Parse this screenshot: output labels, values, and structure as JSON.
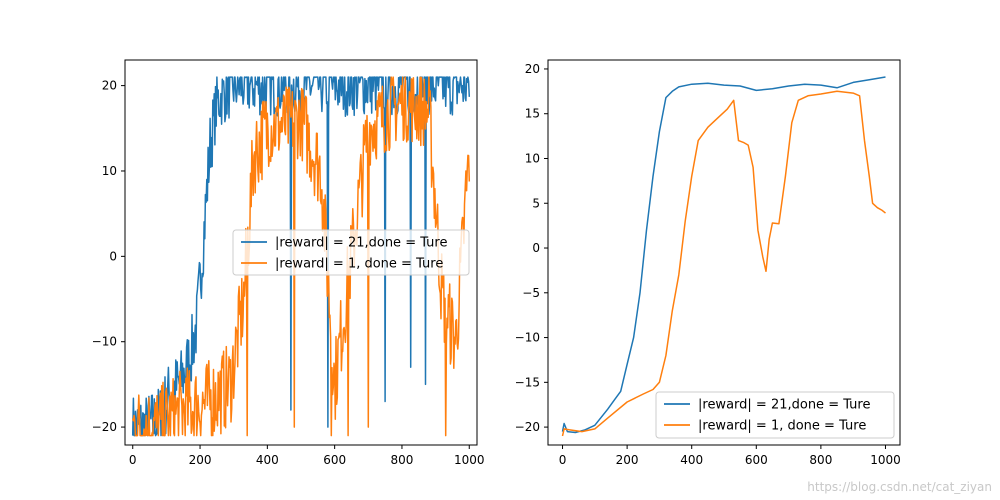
{
  "chart_data": [
    {
      "type": "line",
      "xlim": [
        -23,
        1023
      ],
      "ylim": [
        -22.1,
        23.0
      ],
      "xticks": [
        0,
        200,
        400,
        600,
        800,
        1000
      ],
      "xtick_labels": [
        "0",
        "200",
        "400",
        "600",
        "800",
        "1000"
      ],
      "yticks": [
        -20,
        -10,
        0,
        10,
        20
      ],
      "ytick_labels": [
        "−20",
        "−10",
        "0",
        "10",
        "20"
      ],
      "legend_position": "center-right",
      "grid": false,
      "series": [
        {
          "name": "|reward| = 21,done = Ture",
          "color": "#1f77b4",
          "noise": 4,
          "x": [
            0,
            40,
            80,
            110,
            140,
            170,
            190,
            210,
            230,
            250,
            270,
            300,
            340,
            400,
            500,
            600,
            700,
            800,
            900,
            1000
          ],
          "y": [
            -20,
            -20,
            -19,
            -16,
            -15,
            -12,
            -8,
            2,
            13,
            18,
            19,
            20,
            20,
            20,
            20,
            20,
            20,
            20,
            20,
            20
          ],
          "spikes": [
            {
              "x": 470,
              "y": -18
            },
            {
              "x": 580,
              "y": -20
            },
            {
              "x": 750,
              "y": -17
            },
            {
              "x": 825,
              "y": -13
            },
            {
              "x": 870,
              "y": -15
            }
          ]
        },
        {
          "name": "|reward| = 1, done = Ture",
          "color": "#ff7f0e",
          "noise": 5,
          "x": [
            0,
            80,
            150,
            230,
            290,
            330,
            360,
            400,
            500,
            560,
            600,
            650,
            700,
            800,
            880,
            920,
            960,
            1000
          ],
          "y": [
            -20,
            -20,
            -18,
            -17,
            -15,
            -5,
            12,
            15,
            16,
            10,
            -15,
            0,
            15,
            18,
            17,
            -5,
            -10,
            12
          ],
          "spikes": [
            {
              "x": 340,
              "y": -21
            },
            {
              "x": 480,
              "y": -20
            },
            {
              "x": 590,
              "y": -21
            },
            {
              "x": 640,
              "y": -21
            },
            {
              "x": 700,
              "y": -20
            },
            {
              "x": 930,
              "y": -21
            },
            {
              "x": 990,
              "y": 10
            }
          ]
        }
      ]
    },
    {
      "type": "line",
      "xlim": [
        -45,
        1045
      ],
      "ylim": [
        -22.0,
        21.0
      ],
      "xticks": [
        0,
        200,
        400,
        600,
        800,
        1000
      ],
      "xtick_labels": [
        "0",
        "200",
        "400",
        "600",
        "800",
        "1000"
      ],
      "yticks": [
        -20,
        -15,
        -10,
        -5,
        0,
        5,
        10,
        15,
        20
      ],
      "ytick_labels": [
        "−20",
        "−15",
        "−10",
        "−5",
        "0",
        "5",
        "10",
        "15",
        "20"
      ],
      "legend_position": "bottom-right",
      "grid": false,
      "series": [
        {
          "name": "|reward| = 21,done = Ture",
          "color": "#1f77b4",
          "x": [
            0,
            5,
            15,
            40,
            70,
            100,
            140,
            160,
            180,
            200,
            220,
            240,
            260,
            280,
            300,
            320,
            340,
            360,
            400,
            450,
            500,
            550,
            600,
            650,
            700,
            750,
            800,
            850,
            900,
            950,
            1000
          ],
          "y": [
            -20.5,
            -19.6,
            -20.5,
            -20.6,
            -20.3,
            -19.8,
            -18,
            -17,
            -16,
            -13,
            -10,
            -5,
            2,
            8,
            13,
            16.8,
            17.5,
            18,
            18.3,
            18.4,
            18.2,
            18.1,
            17.6,
            17.8,
            18.1,
            18.3,
            18.2,
            17.9,
            18.5,
            18.8,
            19.1
          ]
        },
        {
          "name": "|reward| = 1, done = Ture",
          "color": "#ff7f0e",
          "x": [
            0,
            5,
            20,
            60,
            100,
            140,
            200,
            250,
            280,
            300,
            320,
            340,
            360,
            380,
            400,
            420,
            450,
            480,
            510,
            530,
            545,
            560,
            575,
            590,
            605,
            620,
            630,
            640,
            650,
            670,
            690,
            710,
            730,
            760,
            800,
            850,
            900,
            920,
            935,
            950,
            960,
            975,
            990,
            1000
          ],
          "y": [
            -21,
            -20.2,
            -20.3,
            -20.5,
            -20.2,
            -19,
            -17.2,
            -16.3,
            -15.8,
            -15,
            -12,
            -7,
            -3,
            3,
            8,
            12,
            13.5,
            14.5,
            15.5,
            16.5,
            12,
            11.8,
            11.5,
            9,
            2,
            -1,
            -2.6,
            1,
            2.8,
            2.7,
            8,
            14,
            16.5,
            17,
            17.2,
            17.5,
            17.3,
            17,
            12,
            8,
            5,
            4.5,
            4.2,
            3.9
          ]
        }
      ]
    }
  ],
  "watermark": "https://blog.csdn.net/cat_ziyan"
}
